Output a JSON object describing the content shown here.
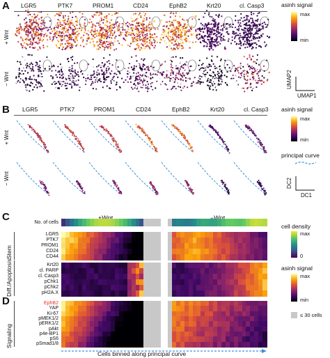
{
  "panels": {
    "A": "A",
    "B": "B",
    "C": "C",
    "D": "D"
  },
  "markers": [
    "LGR5",
    "PTK7",
    "PROM1",
    "CD24",
    "EphB2",
    "Krt20",
    "cl. Casp3"
  ],
  "conditions": {
    "plus": "+ Wnt",
    "minus": "− Wnt"
  },
  "panelA": {
    "legend_title": "asinh signal",
    "legend_max": "max",
    "legend_min": "min",
    "axis_y": "UMAP2",
    "axis_x": "UMAP1"
  },
  "panelB": {
    "legend_title": "asinh signal",
    "legend_max": "max",
    "legend_min": "min",
    "curve_label": "principal curve",
    "axis_y": "DC2",
    "axis_x": "DC1"
  },
  "panelC": {
    "header_plus": "+Wnt",
    "header_minus": "−Wnt",
    "no_cells": "No. of cells",
    "group_stem": "Stem",
    "group_diff": "Diff./Apoptosis",
    "stem_genes": [
      "LGR5",
      "PTK7",
      "PROM1",
      "CD24",
      "CD44"
    ],
    "diff_genes": [
      "Krt20",
      "cl. PARP",
      "cl. Casp3",
      "pChk1",
      "pChk2",
      "pH2A.X"
    ],
    "density_title": "cell density",
    "density_max": "max",
    "density_min": "0",
    "signal_title": "asinh signal",
    "signal_max": "max",
    "signal_min": "min",
    "gray_note": "≤ 30 cells"
  },
  "panelD": {
    "group_signaling": "Signaling",
    "signaling_genes": [
      "EphB2",
      "YAP",
      "Ki-67",
      "pMEK1/2",
      "pERK1/2",
      "pAkt",
      "p4e-BP1",
      "pS6",
      "pSmad1/8"
    ],
    "highlight_gene": "EphB2",
    "highlight_color": "#e0322a",
    "x_caption": "Cells binned along principal curve"
  },
  "colors": {
    "inferno": [
      "#000004",
      "#420a68",
      "#932667",
      "#dd513a",
      "#fca50a",
      "#fcffa4"
    ],
    "viridis": [
      "#440154",
      "#3b528b",
      "#21918c",
      "#5ec962",
      "#fde725"
    ],
    "gray_bin": "#c8c8c8",
    "curve": "#3a8fd8"
  }
}
